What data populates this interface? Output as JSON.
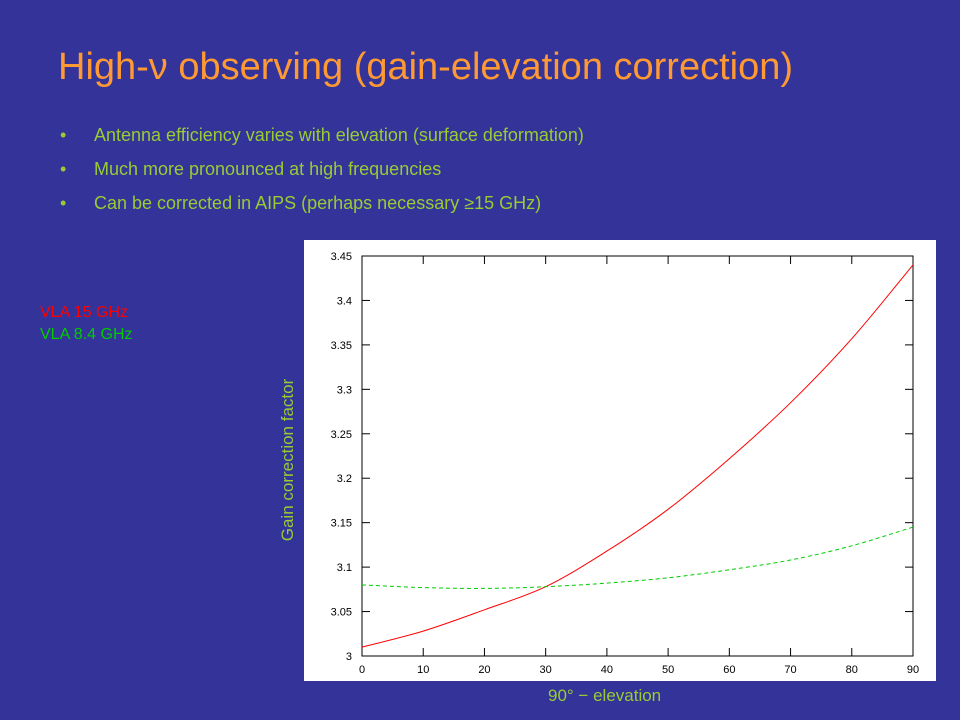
{
  "slide": {
    "title": "High-ν observing (gain-elevation correction)",
    "bullet_marker": "•",
    "bullets": [
      "Antenna efficiency varies with elevation (surface deformation)",
      "Much more pronounced at high frequencies",
      "Can be corrected in AIPS (perhaps necessary ≥15 GHz)"
    ]
  },
  "chart_data": {
    "type": "line",
    "title": "",
    "xlabel": "90° − elevation",
    "ylabel": "Gain correction factor",
    "xlim": [
      0,
      90
    ],
    "ylim": [
      3,
      3.45
    ],
    "xticks": [
      0,
      10,
      20,
      30,
      40,
      50,
      60,
      70,
      80,
      90
    ],
    "yticks": [
      3,
      3.05,
      3.1,
      3.15,
      3.2,
      3.25,
      3.3,
      3.35,
      3.4,
      3.45
    ],
    "ytick_labels": [
      "3",
      "3.05",
      "3.1",
      "3.15",
      "3.2",
      "3.25",
      "3.3",
      "3.35",
      "3.4",
      "3.45"
    ],
    "grid": false,
    "legend_position": "left",
    "series": [
      {
        "name": "VLA 15 GHz",
        "color": "#ff0000",
        "style": "solid",
        "x": [
          0,
          10,
          20,
          30,
          40,
          50,
          60,
          70,
          80,
          90
        ],
        "y": [
          3.01,
          3.028,
          3.052,
          3.078,
          3.118,
          3.165,
          3.222,
          3.285,
          3.357,
          3.44
        ]
      },
      {
        "name": "VLA 8.4 GHz",
        "color": "#00cc00",
        "style": "dashed",
        "x": [
          0,
          10,
          20,
          30,
          40,
          50,
          60,
          70,
          80,
          90
        ],
        "y": [
          3.08,
          3.077,
          3.076,
          3.078,
          3.082,
          3.088,
          3.097,
          3.108,
          3.124,
          3.145
        ]
      }
    ]
  }
}
